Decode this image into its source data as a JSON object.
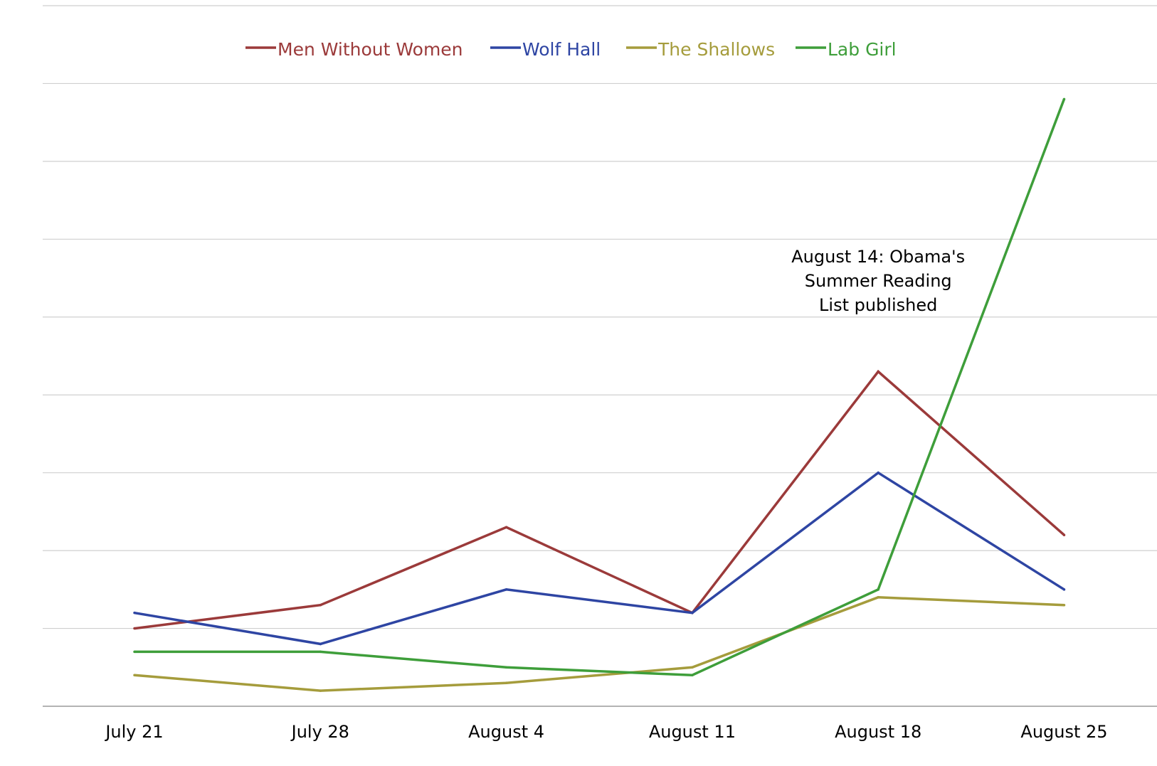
{
  "chart_data": {
    "type": "line",
    "title": "",
    "xlabel": "",
    "ylabel": "",
    "categories": [
      "July 21",
      "July 28",
      "August 4",
      "August 11",
      "August 18",
      "August 25"
    ],
    "ylim": [
      0,
      9
    ],
    "y_tick_labels_shown": false,
    "grid": "horizontal",
    "legend_position": "top",
    "series": [
      {
        "name": "Men Without Women",
        "color": "#9B3A3A",
        "values": [
          1.0,
          1.3,
          2.3,
          1.2,
          4.3,
          2.2
        ]
      },
      {
        "name": "Wolf Hall",
        "color": "#2E45A3",
        "values": [
          1.2,
          0.8,
          1.5,
          1.2,
          3.0,
          1.5
        ]
      },
      {
        "name": "The Shallows",
        "color": "#A59C3C",
        "values": [
          0.4,
          0.2,
          0.3,
          0.5,
          1.4,
          1.3
        ]
      },
      {
        "name": "Lab Girl",
        "color": "#3E9E3A",
        "values": [
          0.7,
          0.7,
          0.5,
          0.4,
          1.5,
          7.8
        ]
      }
    ],
    "annotations": [
      {
        "lines": [
          "August 14: Obama's",
          "Summer Reading",
          "List published"
        ],
        "x_category_index": 4,
        "y": 5.7
      }
    ]
  }
}
